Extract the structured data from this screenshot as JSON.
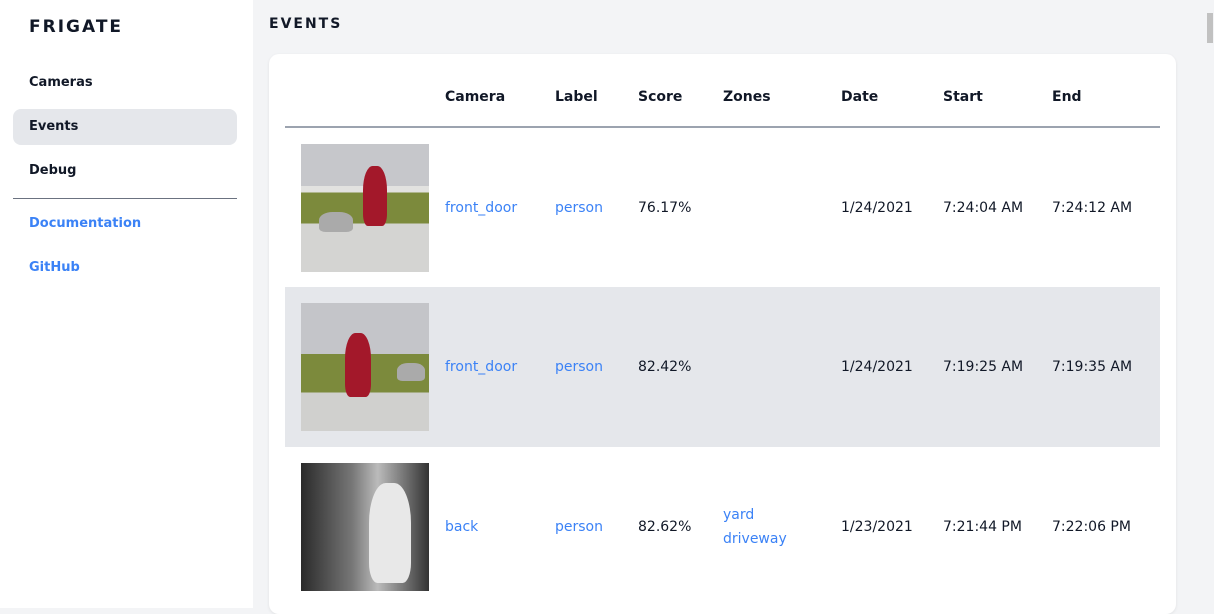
{
  "sidebar": {
    "brand": "FRIGATE",
    "items": [
      {
        "label": "Cameras"
      },
      {
        "label": "Events"
      },
      {
        "label": "Debug"
      }
    ],
    "links": [
      {
        "label": "Documentation"
      },
      {
        "label": "GitHub"
      }
    ]
  },
  "page": {
    "title": "EVENTS"
  },
  "table": {
    "headers": [
      "",
      "Camera",
      "Label",
      "Score",
      "Zones",
      "Date",
      "Start",
      "End"
    ],
    "rows": [
      {
        "camera": "front_door",
        "label": "person",
        "score": "76.17%",
        "zones": [
          "",
          ""
        ],
        "date": "1/24/2021",
        "start": "7:24:04 AM",
        "end": "7:24:12 AM"
      },
      {
        "camera": "front_door",
        "label": "person",
        "score": "82.42%",
        "zones": [
          "",
          ""
        ],
        "date": "1/24/2021",
        "start": "7:19:25 AM",
        "end": "7:19:35 AM"
      },
      {
        "camera": "back",
        "label": "person",
        "score": "82.62%",
        "zones": [
          "yard",
          "driveway"
        ],
        "date": "1/23/2021",
        "start": "7:21:44 PM",
        "end": "7:22:06 PM"
      }
    ]
  },
  "colors": {
    "accent": "#3b82f6",
    "active": "#e5e7eb"
  }
}
